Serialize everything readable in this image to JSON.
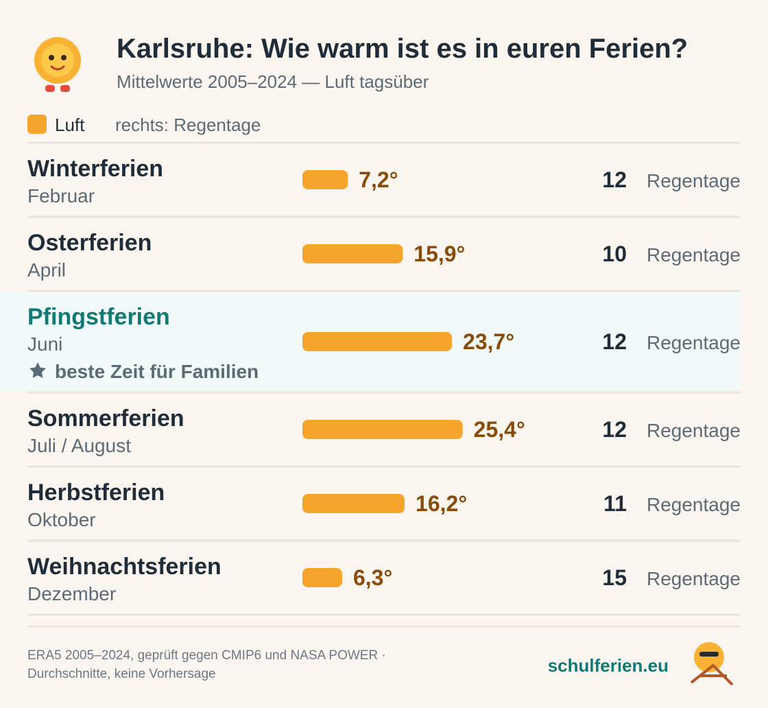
{
  "chart_data": {
    "type": "bar",
    "title": "Karlsruhe: Wie warm ist es in euren Ferien?",
    "subtitle": "Mittelwerte 2005–2024 — Luft tagsüber",
    "legend": {
      "name": "Luft",
      "note": "rechts: Regentage"
    },
    "categories": [
      "Winterferien",
      "Osterferien",
      "Pfingstferien",
      "Sommerferien",
      "Herbstferien",
      "Weihnachtsferien"
    ],
    "subcategories": [
      "Februar",
      "April",
      "Juni",
      "Juli / August",
      "Oktober",
      "Dezember"
    ],
    "values": [
      7.2,
      15.9,
      23.7,
      25.4,
      16.2,
      6.3
    ],
    "value_labels": [
      "7,2°",
      "15,9°",
      "23,7°",
      "25,4°",
      "16,2°",
      "6,3°"
    ],
    "color": "#f5a42c",
    "rain_days": [
      12,
      10,
      12,
      12,
      11,
      15
    ],
    "rain_label": "Regentage",
    "highlight": 2,
    "highlight_note": "beste Zeit für Familien",
    "footer": [
      "ERA5 2005–2024, geprüft gegen CMIP6 und NASA POWER ·",
      "Durchschnitte, keine Vorhersage"
    ],
    "brand": "schulferien.eu"
  }
}
